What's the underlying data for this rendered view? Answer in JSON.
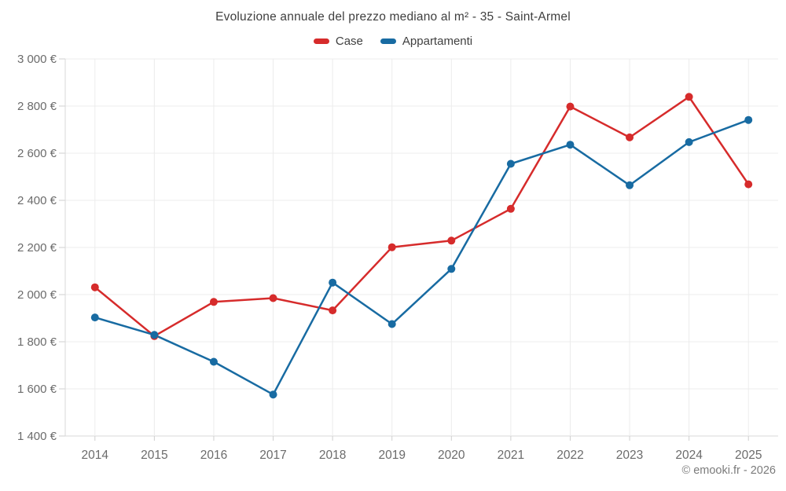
{
  "chart_data": {
    "type": "line",
    "title": "Evoluzione annuale del prezzo mediano al m² - 35 - Saint-Armel",
    "categories": [
      "2014",
      "2015",
      "2016",
      "2017",
      "2018",
      "2019",
      "2020",
      "2021",
      "2022",
      "2023",
      "2024",
      "2025"
    ],
    "series": [
      {
        "name": "Case",
        "color": "#d62b2b",
        "values": [
          2031,
          1824,
          1969,
          1985,
          1933,
          2201,
          2229,
          2364,
          2798,
          2667,
          2839,
          2468
        ]
      },
      {
        "name": "Appartamenti",
        "color": "#186ba2",
        "values": [
          1903,
          1829,
          1715,
          1576,
          2051,
          1875,
          2109,
          2555,
          2636,
          2464,
          2647,
          2741
        ]
      }
    ],
    "ylim": [
      1400,
      3000
    ],
    "ytick_step": 200,
    "y_label_suffix": " €",
    "grid": true,
    "legend_position": "top",
    "xlabel": "",
    "ylabel": ""
  },
  "footer": {
    "credit": "© emooki.fr - 2026"
  }
}
